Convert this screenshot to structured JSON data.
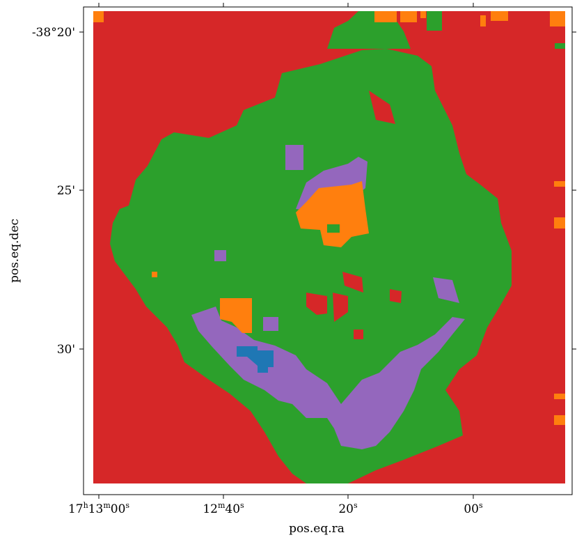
{
  "chart_data": {
    "type": "heatmap",
    "xlabel": "pos.eq.ra",
    "ylabel": "pos.eq.dec",
    "x_ticks": [
      {
        "value": "17h13m00s",
        "label": "17h13m00s",
        "parts": [
          {
            "t": "17",
            "sup": false
          },
          {
            "t": "h",
            "sup": true
          },
          {
            "t": "13",
            "sup": false
          },
          {
            "t": "m",
            "sup": true
          },
          {
            "t": "00",
            "sup": false
          },
          {
            "t": "s",
            "sup": true
          }
        ]
      },
      {
        "value": "17h12m40s",
        "label": "12m40s",
        "parts": [
          {
            "t": "12",
            "sup": false
          },
          {
            "t": "m",
            "sup": true
          },
          {
            "t": "40",
            "sup": false
          },
          {
            "t": "s",
            "sup": true
          }
        ]
      },
      {
        "value": "17h12m20s",
        "label": "20s",
        "parts": [
          {
            "t": "20",
            "sup": false
          },
          {
            "t": "s",
            "sup": true
          }
        ]
      },
      {
        "value": "17h12m00s",
        "label": "00s",
        "parts": [
          {
            "t": "00",
            "sup": false
          },
          {
            "t": "s",
            "sup": true
          }
        ]
      }
    ],
    "y_ticks": [
      {
        "value": "-38°20'",
        "label": "-38°20'"
      },
      {
        "value": "-38°25'",
        "label": "25'"
      },
      {
        "value": "-38°30'",
        "label": "30'"
      }
    ],
    "class_colors": {
      "red": "#d62728",
      "green": "#2ca02c",
      "purple": "#9467bd",
      "orange": "#ff7f0e",
      "blue": "#1f77b4"
    },
    "regions": [
      {
        "class": "green",
        "description": "extended emission region"
      },
      {
        "class": "purple",
        "description": "lower arc and upper central patch"
      },
      {
        "class": "orange",
        "description": "central core and small spots"
      },
      {
        "class": "blue",
        "description": "small patch in lower-left arc"
      },
      {
        "class": "red",
        "description": "background"
      }
    ]
  }
}
